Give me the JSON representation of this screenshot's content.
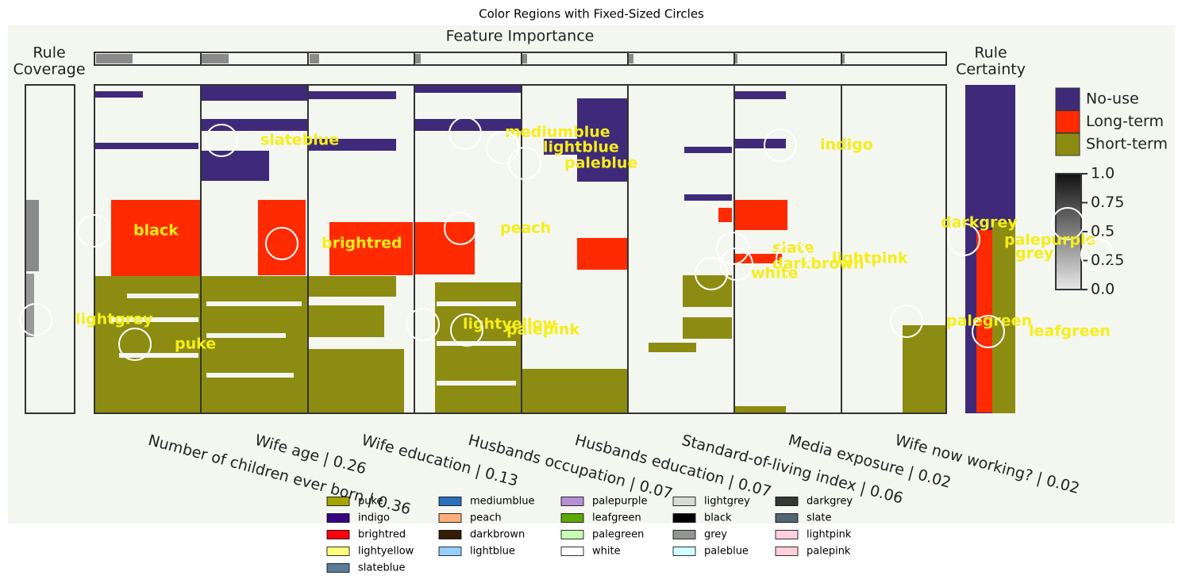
{
  "title": "Color Regions with Fixed-Sized Circles",
  "image": {
    "header": "Feature Importance",
    "coverage": [
      "Rule",
      "Coverage"
    ],
    "certainty": [
      "Rule",
      "Certainty"
    ],
    "features": [
      "Number of children ever born | 0.36",
      "Wife age | 0.26",
      "Wife education | 0.13",
      "Husbands occupation | 0.07",
      "Husbands education | 0.07",
      "Standard-of-living index | 0.06",
      "Media exposure | 0.02",
      "Wife now working? | 0.02"
    ],
    "legend": [
      "No-use",
      "Long-term",
      "Short-term"
    ],
    "colorbar_ticks": [
      "1.0",
      "0.75",
      "0.5",
      "0.25",
      "0.0"
    ]
  },
  "annotations": [
    "slateblue",
    "mediumblue",
    "lightblue",
    "paleblue",
    "indigo",
    "black",
    "brightred",
    "peach",
    "darkgrey",
    "palepurple",
    "grey",
    "slate",
    "darkbrown",
    "lightpink",
    "white",
    "lightgrey",
    "puke",
    "lightyellow",
    "palepink",
    "palegreen",
    "leafgreen"
  ],
  "legend": [
    {
      "name": "puke",
      "color": "#a5a502"
    },
    {
      "name": "indigo",
      "color": "#380282"
    },
    {
      "name": "brightred",
      "color": "#ff000d"
    },
    {
      "name": "lightyellow",
      "color": "#fffe7a"
    },
    {
      "name": "slateblue",
      "color": "#5b7c99"
    },
    {
      "name": "mediumblue",
      "color": "#2c6fbb"
    },
    {
      "name": "peach",
      "color": "#ffb07c"
    },
    {
      "name": "darkbrown",
      "color": "#341c02"
    },
    {
      "name": "lightblue",
      "color": "#95d0fc"
    },
    {
      "name": "palepurple",
      "color": "#b790d4"
    },
    {
      "name": "leafgreen",
      "color": "#5ca904"
    },
    {
      "name": "palegreen",
      "color": "#c7fdb5"
    },
    {
      "name": "white",
      "color": "#ffffff"
    },
    {
      "name": "lightgrey",
      "color": "#d8dcd6"
    },
    {
      "name": "black",
      "color": "#000000"
    },
    {
      "name": "grey",
      "color": "#929591"
    },
    {
      "name": "paleblue",
      "color": "#d0fefe"
    },
    {
      "name": "darkgrey",
      "color": "#363737"
    },
    {
      "name": "slate",
      "color": "#516572"
    },
    {
      "name": "lightpink",
      "color": "#ffd1df"
    },
    {
      "name": "palepink",
      "color": "#ffcfdc"
    }
  ]
}
